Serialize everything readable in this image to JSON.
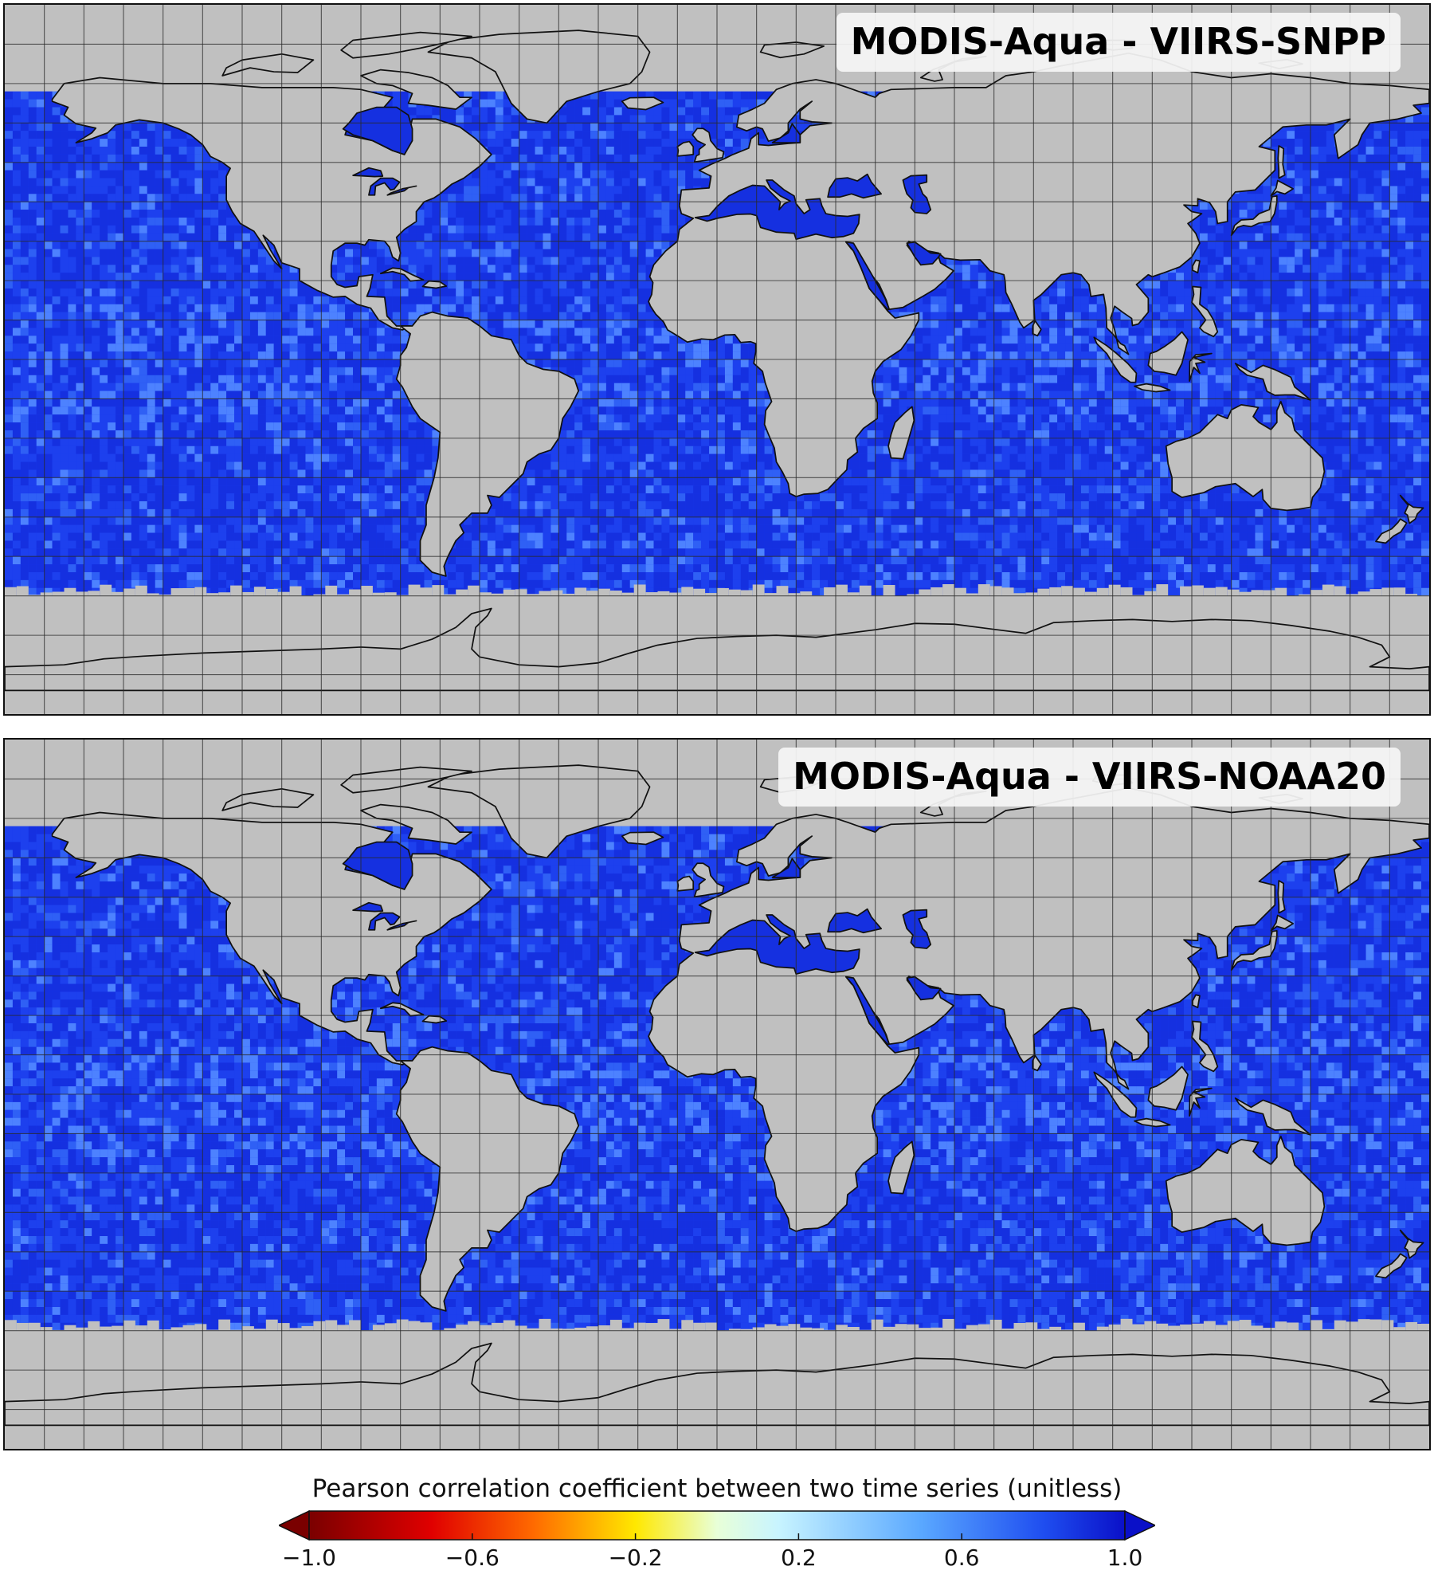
{
  "panels": [
    {
      "title": "MODIS-Aqua - VIIRS-SNPP"
    },
    {
      "title": "MODIS-Aqua - VIIRS-NOAA20"
    }
  ],
  "map": {
    "projection": "equirectangular",
    "lon_range": [
      -180,
      180
    ],
    "lat_range": [
      -90,
      90
    ],
    "grid_spacing_deg": 10,
    "land_color": "#c0c0c0",
    "ocean_color_typical": "#1a3cf0",
    "coastline_color": "#111111",
    "valid_data_lat_range": [
      -60,
      68
    ]
  },
  "colorbar": {
    "title": "Pearson correlation coefficient between two time series (unitless)",
    "min": -1.0,
    "max": 1.0,
    "extend": "both",
    "tick_values": [
      -1.0,
      -0.6,
      -0.2,
      0.2,
      0.6,
      1.0
    ],
    "tick_labels": [
      "−1.0",
      "−0.6",
      "−0.2",
      "0.2",
      "0.6",
      "1.0"
    ],
    "colormap_stops": [
      {
        "value": -1.0,
        "color": "#7a0000"
      },
      {
        "value": -0.7,
        "color": "#e00000"
      },
      {
        "value": -0.45,
        "color": "#ff6a00"
      },
      {
        "value": -0.2,
        "color": "#ffe800"
      },
      {
        "value": 0.0,
        "color": "#e8ffd8"
      },
      {
        "value": 0.15,
        "color": "#c8f4ff"
      },
      {
        "value": 0.5,
        "color": "#5aa8ff"
      },
      {
        "value": 0.8,
        "color": "#1f4ef0"
      },
      {
        "value": 1.0,
        "color": "#0a10c8"
      }
    ]
  }
}
